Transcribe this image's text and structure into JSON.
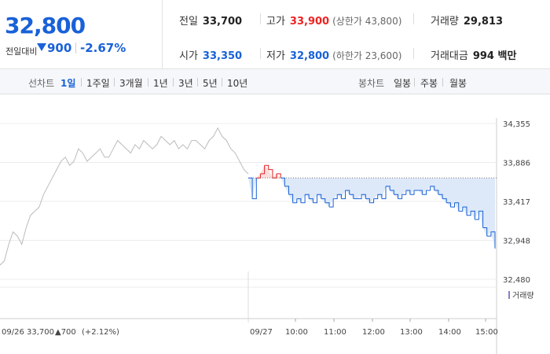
{
  "quote": {
    "price": "32,800",
    "change_label": "전일대비",
    "change_amount": "900",
    "change_percent": "-2.67%",
    "color_down": "#1961d8",
    "color_up": "#e22222"
  },
  "stats": {
    "prev_label": "전일",
    "prev": "33,700",
    "high_label": "고가",
    "high": "33,900",
    "upper_limit": "(상한가 43,800)",
    "volume_label": "거래량",
    "volume": "29,813",
    "open_label": "시가",
    "open": "33,350",
    "low_label": "저가",
    "low": "32,800",
    "lower_limit": "(하한가 23,600)",
    "amount_label": "거래대금",
    "amount": "994 백만"
  },
  "line_tabs": {
    "head": "선차트",
    "items": [
      "1일",
      "1주일",
      "3개월",
      "1년",
      "3년",
      "5년",
      "10년"
    ],
    "active": "1일"
  },
  "candle_tabs": {
    "head": "봉차트",
    "items": [
      "일봉",
      "주봉",
      "월봉"
    ]
  },
  "chart_data": {
    "type": "line",
    "y_ticks": [
      "34,355",
      "33,886",
      "33,417",
      "32,948",
      "32,480"
    ],
    "ylim": [
      32480,
      34355
    ],
    "prev_close": 33700,
    "prev_day": {
      "label": "09/26",
      "close": "33,700",
      "change": "▲700",
      "change_pct": "(+2.12%)",
      "values": [
        32650,
        32700,
        32900,
        33050,
        33000,
        32900,
        33100,
        33250,
        33300,
        33350,
        33500,
        33600,
        33700,
        33800,
        33900,
        33950,
        33850,
        33900,
        34050,
        34000,
        33900,
        33950,
        34000,
        34050,
        33950,
        33950,
        34050,
        34150,
        34100,
        34050,
        34000,
        34100,
        34050,
        34150,
        34100,
        34050,
        34100,
        34200,
        34150,
        34100,
        34150,
        34050,
        34100,
        34050,
        34150,
        34150,
        34100,
        34050,
        34150,
        34200,
        34300,
        34200,
        34150,
        34050,
        34000,
        33900,
        33800,
        33750
      ]
    },
    "today": {
      "label": "09/27",
      "x_ticks": [
        "10:00",
        "11:00",
        "12:00",
        "13:00",
        "14:00",
        "15:00"
      ],
      "values": [
        33700,
        33450,
        33700,
        33750,
        33850,
        33800,
        33700,
        33750,
        33700,
        33600,
        33500,
        33400,
        33450,
        33400,
        33500,
        33450,
        33400,
        33500,
        33450,
        33400,
        33350,
        33450,
        33500,
        33450,
        33550,
        33500,
        33450,
        33450,
        33500,
        33450,
        33400,
        33450,
        33500,
        33450,
        33600,
        33550,
        33500,
        33450,
        33500,
        33550,
        33500,
        33550,
        33550,
        33500,
        33550,
        33600,
        33550,
        33500,
        33450,
        33400,
        33350,
        33400,
        33300,
        33350,
        33250,
        33300,
        33200,
        33300,
        33100,
        33000,
        33050,
        32850
      ]
    },
    "volume_label": "거래량"
  }
}
